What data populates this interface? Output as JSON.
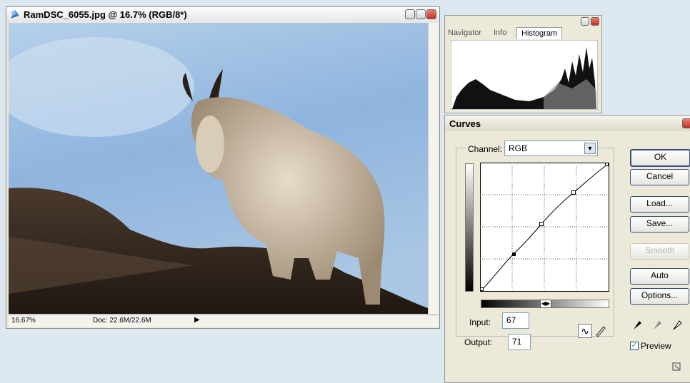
{
  "document_window": {
    "title": "RamDSC_6055.jpg @ 16.7% (RGB/8*)",
    "zoom": "16.67%",
    "doc_info": "Doc: 22.6M/22.6M"
  },
  "palette": {
    "tabs": [
      "Navigator",
      "Info",
      "Histogram"
    ]
  },
  "curves": {
    "title": "Curves",
    "channel_label": "Channel:",
    "channel": "RGB",
    "buttons": [
      "OK",
      "Cancel",
      "Load...",
      "Save...",
      "Smooth",
      "Auto",
      "Options..."
    ],
    "input_label": "Input:",
    "input": "67",
    "output_label": "Output:",
    "output": "71",
    "preview": "Preview"
  }
}
